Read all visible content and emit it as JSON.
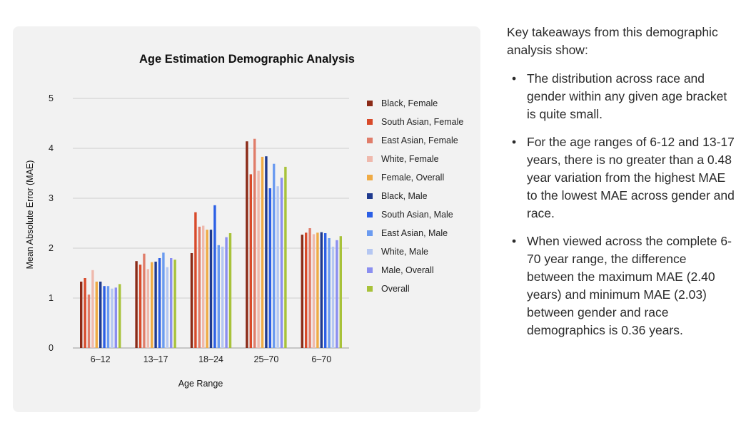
{
  "chart_data": {
    "type": "bar",
    "title": "Age Estimation Demographic Analysis",
    "xlabel": "Age Range",
    "ylabel": "Mean Absolute Error (MAE)",
    "ylim": [
      0,
      5
    ],
    "yticks": [
      0,
      1,
      2,
      3,
      4,
      5
    ],
    "grid": true,
    "legend_position": "right",
    "categories": [
      "6–12",
      "13–17",
      "18–24",
      "25–70",
      "6–70"
    ],
    "series": [
      {
        "name": "Black, Female",
        "color": "#8b2a17",
        "values": [
          1.33,
          1.74,
          1.9,
          4.14,
          2.27
        ]
      },
      {
        "name": "South Asian, Female",
        "color": "#d84a2a",
        "values": [
          1.4,
          1.67,
          2.72,
          3.48,
          2.31
        ]
      },
      {
        "name": "East Asian, Female",
        "color": "#e07d6a",
        "values": [
          1.07,
          1.89,
          2.43,
          4.19,
          2.4
        ]
      },
      {
        "name": "White, Female",
        "color": "#efb9ad",
        "values": [
          1.56,
          1.58,
          2.45,
          3.55,
          2.28
        ]
      },
      {
        "name": "Female, Overall",
        "color": "#efab45",
        "values": [
          1.33,
          1.72,
          2.37,
          3.83,
          2.31
        ]
      },
      {
        "name": "Black, Male",
        "color": "#1f3a8f",
        "values": [
          1.33,
          1.73,
          2.37,
          3.84,
          2.32
        ]
      },
      {
        "name": "South Asian, Male",
        "color": "#2b5fe6",
        "values": [
          1.24,
          1.8,
          2.86,
          3.2,
          2.3
        ]
      },
      {
        "name": "East Asian, Male",
        "color": "#6b9bf0",
        "values": [
          1.24,
          1.91,
          2.06,
          3.69,
          2.2
        ]
      },
      {
        "name": "White, Male",
        "color": "#b5c7f2",
        "values": [
          1.19,
          1.62,
          2.03,
          3.24,
          2.03
        ]
      },
      {
        "name": "Male, Overall",
        "color": "#8b8ff0",
        "values": [
          1.21,
          1.8,
          2.22,
          3.41,
          2.16
        ]
      },
      {
        "name": "Overall",
        "color": "#a8c23a",
        "values": [
          1.28,
          1.77,
          2.3,
          3.63,
          2.24
        ]
      }
    ]
  },
  "takeaways": {
    "intro": "Key takeaways from this demographic analysis show:",
    "bullets": [
      "The distribution across race and gender within any given age bracket is quite small.",
      "For the age ranges of 6-12 and 13-17 years, there is no greater than a 0.48 year variation from the highest MAE to the lowest MAE across gender and race.",
      "When viewed across the complete 6-70 year range, the difference between the maximum MAE (2.40 years) and minimum MAE (2.03) between gender and race demographics is 0.36 years."
    ]
  }
}
